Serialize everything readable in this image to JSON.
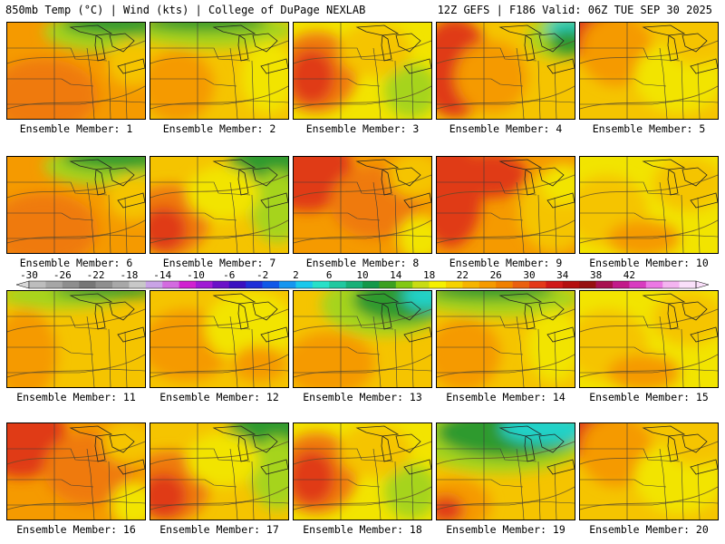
{
  "header": {
    "left": "850mb Temp (°C) | Wind (kts) | College of DuPage NEXLAB",
    "right": "12Z GEFS | F186 Valid: 06Z TUE SEP 30 2025"
  },
  "members": [
    {
      "label": "Ensemble Member: 1",
      "style": "cool_ne"
    },
    {
      "label": "Ensemble Member: 2",
      "style": "cool_n"
    },
    {
      "label": "Ensemble Member: 3",
      "style": "warm_w"
    },
    {
      "label": "Ensemble Member: 4",
      "style": "hot_w_cool_ne"
    },
    {
      "label": "Ensemble Member: 5",
      "style": "warm_nw"
    },
    {
      "label": "Ensemble Member: 6",
      "style": "cool_ne"
    },
    {
      "label": "Ensemble Member: 7",
      "style": "cool_e"
    },
    {
      "label": "Ensemble Member: 8",
      "style": "hot_nw"
    },
    {
      "label": "Ensemble Member: 9",
      "style": "hot_w"
    },
    {
      "label": "Ensemble Member: 10",
      "style": "mild"
    },
    {
      "label": "Ensemble Member: 11",
      "style": "warm_w_cool_n"
    },
    {
      "label": "Ensemble Member: 12",
      "style": "mild_warm"
    },
    {
      "label": "Ensemble Member: 13",
      "style": "cold_ne"
    },
    {
      "label": "Ensemble Member: 14",
      "style": "cool_n"
    },
    {
      "label": "Ensemble Member: 15",
      "style": "mild"
    },
    {
      "label": "Ensemble Member: 16",
      "style": "hot_nw"
    },
    {
      "label": "Ensemble Member: 17",
      "style": "cool_e"
    },
    {
      "label": "Ensemble Member: 18",
      "style": "warm_w"
    },
    {
      "label": "Ensemble Member: 19",
      "style": "cold_n"
    },
    {
      "label": "Ensemble Member: 20",
      "style": "warm_nw"
    }
  ],
  "colorbar": {
    "labels": [
      "-30",
      "-26",
      "-22",
      "-18",
      "-14",
      "-10",
      "-6",
      "-2",
      "2",
      "6",
      "10",
      "14",
      "18",
      "22",
      "26",
      "30",
      "34",
      "38",
      "42"
    ],
    "colors": [
      "#bdbdbd",
      "#a6a6a6",
      "#8e8e8e",
      "#777777",
      "#8f8f8f",
      "#a8a8a8",
      "#c8c8c8",
      "#c9a3e6",
      "#d36be0",
      "#d022d0",
      "#a01bd4",
      "#6a12c8",
      "#3a10c0",
      "#1f2fd8",
      "#1058e8",
      "#1696f0",
      "#1ac8ec",
      "#28e0c8",
      "#20c8a0",
      "#18b078",
      "#13984a",
      "#3ca020",
      "#82c814",
      "#c8dc14",
      "#f5f000",
      "#f5d200",
      "#f5b400",
      "#f59a00",
      "#f08000",
      "#ea6010",
      "#e43818",
      "#d01818",
      "#b40f0f",
      "#961010",
      "#a81050",
      "#c21a8a",
      "#d83cc0",
      "#ec78e4",
      "#f4b4f0",
      "#fae0fa"
    ],
    "unit_hint": ""
  },
  "palette": {
    "green": "#2e9a2e",
    "lime": "#a6d41c",
    "yellow": "#f2e400",
    "gold": "#f5c400",
    "orange": "#f59a00",
    "deep_orange": "#ef7a0a",
    "red": "#e03a18",
    "teal": "#23d2c8",
    "border": "#3a3a3a"
  }
}
